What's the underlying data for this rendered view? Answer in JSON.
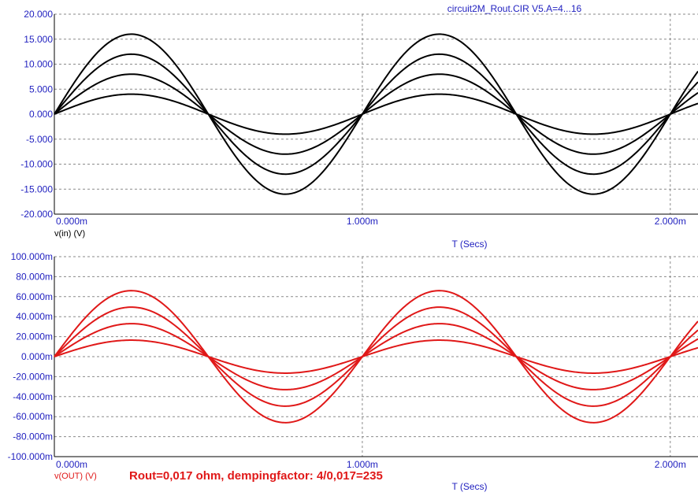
{
  "window_title": "circuit2M_Rout.CIR V5.A=4...16",
  "annotation": "Rout=0,017 ohm, dempingfactor: 4/0,017=235",
  "colors": {
    "input": "#000000",
    "output": "#e01818",
    "tick_text": "#1f1fbf",
    "grid": "#8a8a8a"
  },
  "chart_data": [
    {
      "type": "line",
      "xlabel": "T (Secs)",
      "ylabel": "v(in) (V)",
      "x_unit_scale": "m",
      "xlim": [
        0,
        0.00209
      ],
      "ylim": [
        -20,
        20
      ],
      "grid": true,
      "x_tick_values": [
        0,
        0.001,
        0.002
      ],
      "x_tick_labels": [
        "0.000m",
        "1.000m",
        "2.000m"
      ],
      "y_tick_values": [
        20,
        15,
        10,
        5,
        0,
        -5,
        -10,
        -15,
        -20
      ],
      "y_tick_labels": [
        "20.000",
        "15.000",
        "10.000",
        "5.000",
        "0.000",
        "-5.000",
        "-10.000",
        "-15.000",
        "-20.000"
      ],
      "waveform": "sine",
      "frequency_hz": 1000,
      "series": [
        {
          "amplitude": 4
        },
        {
          "amplitude": 8
        },
        {
          "amplitude": 12
        },
        {
          "amplitude": 16
        }
      ]
    },
    {
      "type": "line",
      "xlabel": "T (Secs)",
      "ylabel": "v(OUT) (V)",
      "x_unit_scale": "m",
      "xlim": [
        0,
        0.00209
      ],
      "ylim": [
        -0.1,
        0.1
      ],
      "grid": true,
      "x_tick_values": [
        0,
        0.001,
        0.002
      ],
      "x_tick_labels": [
        "0.000m",
        "1.000m",
        "2.000m"
      ],
      "y_tick_values": [
        0.1,
        0.08,
        0.06,
        0.04,
        0.02,
        0,
        -0.02,
        -0.04,
        -0.06,
        -0.08,
        -0.1
      ],
      "y_tick_labels": [
        "100.000m",
        "80.000m",
        "60.000m",
        "40.000m",
        "20.000m",
        "0.000m",
        "-20.000m",
        "-40.000m",
        "-60.000m",
        "-80.000m",
        "-100.000m"
      ],
      "waveform": "sine",
      "frequency_hz": 1000,
      "series": [
        {
          "amplitude": 0.0165
        },
        {
          "amplitude": 0.033
        },
        {
          "amplitude": 0.0495
        },
        {
          "amplitude": 0.066
        }
      ]
    }
  ]
}
